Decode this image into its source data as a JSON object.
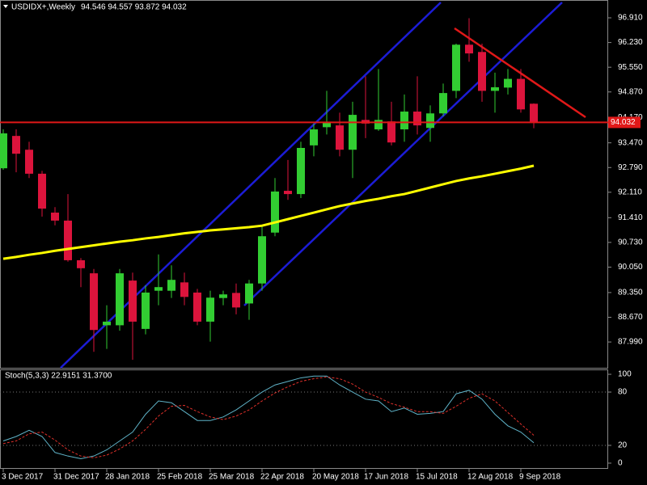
{
  "chart_data": [
    {
      "type": "candlestick",
      "title": "USDIDX+,Weekly",
      "subtitle": "94.546 94.557 93.872 94.032",
      "categories": [
        "3 Dec 2017",
        null,
        null,
        null,
        "31 Dec 2017",
        null,
        null,
        null,
        "28 Jan 2018",
        null,
        null,
        null,
        "25 Feb 2018",
        null,
        null,
        null,
        "25 Mar 2018",
        null,
        null,
        null,
        "22 Apr 2018",
        null,
        null,
        null,
        "20 May 2018",
        null,
        null,
        null,
        "17 Jun 2018",
        null,
        null,
        null,
        "15 Jul 2018",
        null,
        null,
        null,
        "12 Aug 2018",
        null,
        null,
        null,
        "9 Sep 2018",
        null
      ],
      "open": [
        92.77,
        93.66,
        93.28,
        92.62,
        91.55,
        91.33,
        90.24,
        89.88,
        88.45,
        88.45,
        89.68,
        88.35,
        89.4,
        89.4,
        89.63,
        89.35,
        88.55,
        89.2,
        89.34,
        89.05,
        89.6,
        91.0,
        92.15,
        92.06,
        93.4,
        93.9,
        93.95,
        93.28,
        94.1,
        93.84,
        94.06,
        93.84,
        94.33,
        93.88,
        94.28,
        94.9,
        96.17,
        95.97,
        94.9,
        94.99,
        95.23,
        94.546
      ],
      "high": [
        93.84,
        93.84,
        93.5,
        92.7,
        91.7,
        92.06,
        90.3,
        90.0,
        89.0,
        90.0,
        89.9,
        89.55,
        90.4,
        90.1,
        89.9,
        89.45,
        89.4,
        89.4,
        89.6,
        89.7,
        91.2,
        92.5,
        93.0,
        93.5,
        94.0,
        94.9,
        94.3,
        94.6,
        95.3,
        95.5,
        94.6,
        94.8,
        95.3,
        94.5,
        95.1,
        96.2,
        96.9,
        96.2,
        95.4,
        95.5,
        95.5,
        94.557
      ],
      "low": [
        92.73,
        92.66,
        92.5,
        91.44,
        91.2,
        90.2,
        89.5,
        87.72,
        87.8,
        88.3,
        87.5,
        88.2,
        89.0,
        89.2,
        89.0,
        88.45,
        88.0,
        89.0,
        88.75,
        88.6,
        89.4,
        90.9,
        91.9,
        91.95,
        93.1,
        93.7,
        93.1,
        92.5,
        93.6,
        93.8,
        93.4,
        93.5,
        93.7,
        93.5,
        94.2,
        94.7,
        95.7,
        94.6,
        94.3,
        94.8,
        94.3,
        93.872
      ],
      "close": [
        93.73,
        93.17,
        92.62,
        91.66,
        91.33,
        90.24,
        90.02,
        88.32,
        88.55,
        89.88,
        88.55,
        89.35,
        89.5,
        89.7,
        89.23,
        88.55,
        89.21,
        89.3,
        88.94,
        89.6,
        90.9,
        92.13,
        92.06,
        93.33,
        93.84,
        94.05,
        93.28,
        94.24,
        94.0,
        94.1,
        93.48,
        94.33,
        93.95,
        94.28,
        94.84,
        96.17,
        95.93,
        94.9,
        95.0,
        95.23,
        94.39,
        94.032
      ],
      "up_color": "#32cd32",
      "down_color": "#dc143c",
      "series": [
        {
          "color": "#ffff00",
          "values": [
            90.28,
            90.33,
            90.39,
            90.44,
            90.5,
            90.55,
            90.6,
            90.65,
            90.7,
            90.75,
            90.79,
            90.84,
            90.88,
            90.93,
            90.98,
            91.02,
            91.06,
            91.09,
            91.12,
            91.15,
            91.19,
            91.28,
            91.37,
            91.46,
            91.55,
            91.64,
            91.73,
            91.8,
            91.87,
            91.93,
            92.0,
            92.06,
            92.15,
            92.24,
            92.33,
            92.42,
            92.49,
            92.55,
            92.62,
            92.69,
            92.76,
            92.84
          ]
        }
      ],
      "current_price": {
        "value": 94.032,
        "label": "94.032"
      },
      "ylim": [
        87.28,
        97.4
      ],
      "yticks": [
        {
          "value": 96.91,
          "label": "96.910"
        },
        {
          "value": 96.23,
          "label": "96.230"
        },
        {
          "value": 95.55,
          "label": "95.550"
        },
        {
          "value": 94.87,
          "label": "94.870"
        },
        {
          "value": 94.17,
          "label": "94.170"
        },
        {
          "value": 93.47,
          "label": "93.470"
        },
        {
          "value": 92.79,
          "label": "92.790"
        },
        {
          "value": 92.11,
          "label": "92.110"
        },
        {
          "value": 91.41,
          "label": "91.410"
        },
        {
          "value": 90.73,
          "label": "90.730"
        },
        {
          "value": 90.05,
          "label": "90.050"
        },
        {
          "value": 89.35,
          "label": "89.350"
        },
        {
          "value": 88.67,
          "label": "88.670"
        },
        {
          "value": 87.99,
          "label": "87.990"
        }
      ]
    },
    {
      "type": "line",
      "title": "Stoch(5,3,3) 22.9151 31.3700",
      "series": [
        {
          "color": "#5fb3c8",
          "values": [
            25,
            30,
            37,
            30,
            12,
            8,
            5,
            8,
            15,
            25,
            35,
            55,
            70,
            68,
            58,
            48,
            48,
            52,
            60,
            70,
            80,
            88,
            92,
            96,
            98,
            98,
            88,
            80,
            72,
            70,
            58,
            62,
            55,
            56,
            58,
            78,
            82,
            72,
            55,
            42,
            35,
            22.9151
          ]
        },
        {
          "color": "#e0302a",
          "dashed": true,
          "values": [
            22,
            25,
            33,
            35,
            26,
            15,
            8,
            6,
            9,
            16,
            25,
            38,
            53,
            64,
            65,
            58,
            52,
            49,
            53,
            60,
            70,
            79,
            86,
            92,
            95,
            97,
            95,
            89,
            80,
            74,
            67,
            63,
            58,
            58,
            56,
            64,
            73,
            78,
            70,
            57,
            44,
            31.37
          ]
        }
      ],
      "ylim": [
        -6.4,
        105.5
      ],
      "yticks": [
        100,
        80,
        20,
        0
      ],
      "levels": [
        80,
        20
      ]
    }
  ]
}
